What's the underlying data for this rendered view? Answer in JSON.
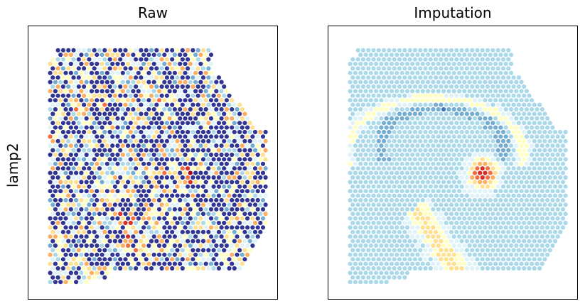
{
  "chart_data": [
    {
      "type": "scatter",
      "title": "Raw",
      "ylabel": "lamp2",
      "xlabel": "",
      "grid": false,
      "ticks": "none",
      "colormap": "RdYlBu_r",
      "colorscale": [
        "#313695",
        "#4575b4",
        "#74add1",
        "#abd9e9",
        "#e0f3f8",
        "#ffffbf",
        "#fee090",
        "#fdae61",
        "#f46d43",
        "#d73027",
        "#a50026"
      ],
      "description_values": "spatial spots; expression mostly low (dark blue) with sparse high values (orange/red)"
    },
    {
      "type": "scatter",
      "title": "Imputation",
      "xlabel": "",
      "ylabel": "",
      "grid": false,
      "ticks": "none",
      "colormap": "RdYlBu_r",
      "colorscale": [
        "#313695",
        "#4575b4",
        "#74add1",
        "#abd9e9",
        "#e0f3f8",
        "#ffffbf",
        "#fee090",
        "#fdae61",
        "#f46d43",
        "#d73027",
        "#a50026"
      ]
    }
  ]
}
